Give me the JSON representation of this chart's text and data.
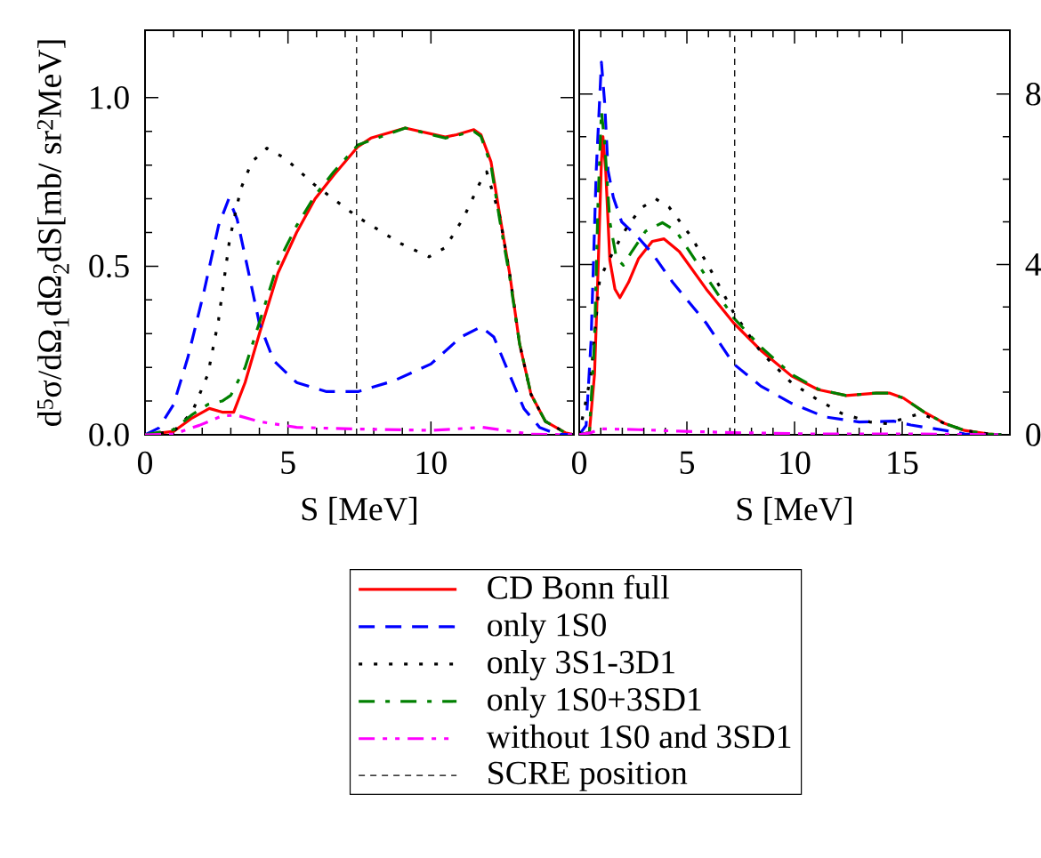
{
  "chart_data": [
    {
      "type": "line",
      "ylabel": "d$^{5}$σ/dΩ$_{1}$dΩ$_{2}$dS[mb/ sr$^{2}$MeV]",
      "xlabel": "S [MeV]",
      "xlim": [
        0,
        15
      ],
      "xticks": [
        0,
        5,
        10
      ],
      "ylim": [
        0,
        1.2
      ],
      "yticks": [
        {
          "value": 0,
          "label": "0.0"
        },
        {
          "value": 0.5,
          "label": "0.5"
        },
        {
          "value": 1.0,
          "label": "1.0"
        }
      ],
      "legend": "bottom",
      "series": [
        {
          "name": "CD Bonn full",
          "color": "#ff0000",
          "line_style": "solid",
          "x": [
            0,
            1.0,
            1.65,
            2.25,
            2.7,
            3.1,
            3.5,
            4.0,
            4.65,
            5.3,
            5.95,
            6.6,
            7.45,
            7.9,
            9.1,
            10.5,
            10.9,
            11.5,
            11.75,
            12.1,
            12.4,
            12.75,
            13.1,
            13.5,
            14.0,
            14.7,
            15.0
          ],
          "values": [
            0,
            0.01,
            0.05,
            0.078,
            0.067,
            0.067,
            0.155,
            0.3,
            0.48,
            0.6,
            0.7,
            0.77,
            0.855,
            0.88,
            0.91,
            0.883,
            0.89,
            0.905,
            0.89,
            0.81,
            0.655,
            0.48,
            0.27,
            0.12,
            0.04,
            0.006,
            0
          ]
        },
        {
          "name": "only 1S0",
          "color": "#0000ff",
          "line_style": "dashed",
          "x": [
            0,
            0.48,
            1.0,
            1.5,
            2.05,
            2.57,
            2.93,
            3.22,
            3.6,
            4.0,
            4.5,
            5.3,
            6.35,
            7.45,
            8.7,
            10.0,
            11.05,
            11.75,
            12.2,
            12.75,
            13.25,
            13.8,
            14.4,
            15.0
          ],
          "values": [
            0,
            0.02,
            0.09,
            0.23,
            0.42,
            0.62,
            0.7,
            0.64,
            0.49,
            0.33,
            0.22,
            0.155,
            0.128,
            0.128,
            0.16,
            0.21,
            0.29,
            0.32,
            0.29,
            0.178,
            0.078,
            0.022,
            0.002,
            0
          ]
        },
        {
          "name": "only 3S1-3D1",
          "color": "#000000",
          "line_style": "dotted",
          "x": [
            0,
            1.0,
            1.65,
            2.2,
            2.57,
            2.96,
            3.35,
            3.74,
            4.26,
            4.9,
            5.95,
            7.45,
            8.95,
            9.93,
            10.5,
            11.15,
            11.7,
            11.95,
            12.4,
            12.75,
            13.1,
            13.5,
            14.0,
            14.7,
            15.0
          ],
          "values": [
            0,
            0.01,
            0.067,
            0.18,
            0.34,
            0.58,
            0.73,
            0.81,
            0.85,
            0.82,
            0.74,
            0.645,
            0.567,
            0.528,
            0.555,
            0.645,
            0.745,
            0.78,
            0.65,
            0.48,
            0.27,
            0.12,
            0.04,
            0.006,
            0
          ]
        },
        {
          "name": "only 1S0+3SD1",
          "color": "#008000",
          "line_style": "dashdot",
          "x": [
            0,
            1.0,
            1.65,
            2.2,
            2.7,
            3.0,
            3.5,
            4.0,
            4.65,
            5.3,
            5.95,
            6.6,
            7.45,
            9.1,
            10.5,
            11.5,
            11.75,
            12.1,
            12.4,
            12.75,
            13.1,
            13.5,
            14.0,
            14.7,
            15.0
          ],
          "values": [
            0,
            0.015,
            0.06,
            0.09,
            0.1,
            0.117,
            0.2,
            0.333,
            0.51,
            0.62,
            0.71,
            0.78,
            0.86,
            0.91,
            0.88,
            0.9,
            0.885,
            0.8,
            0.64,
            0.47,
            0.27,
            0.12,
            0.04,
            0.006,
            0
          ]
        },
        {
          "name": "without 1S0 and 3SD1",
          "color": "#ff00ff",
          "line_style": "dashdotdot",
          "x": [
            0,
            1.0,
            1.9,
            2.7,
            3.2,
            4.0,
            5.3,
            7.45,
            10.0,
            11.8,
            12.9,
            13.5,
            15.0
          ],
          "values": [
            0,
            0.002,
            0.028,
            0.056,
            0.058,
            0.039,
            0.022,
            0.017,
            0.013,
            0.022,
            0.009,
            0.002,
            0
          ]
        }
      ],
      "ref_lines": [
        {
          "axis": "x",
          "value": 7.4,
          "label": "SCRE position",
          "color": "#000000",
          "line_style": "dashed"
        }
      ]
    },
    {
      "type": "line",
      "xlabel": "S [MeV]",
      "xlim": [
        0,
        20
      ],
      "xticks": [
        0,
        5,
        10,
        15
      ],
      "ylim": [
        0,
        9.5
      ],
      "yticks": [
        0,
        4,
        8
      ],
      "series": [
        {
          "color": "#ff0000",
          "line_style": "solid",
          "x": [
            0,
            0.47,
            0.71,
            0.87,
            1.03,
            1.1,
            1.23,
            1.42,
            1.66,
            1.89,
            2.29,
            2.76,
            3.39,
            3.94,
            4.65,
            5.9,
            7.18,
            8.44,
            9.86,
            11.1,
            12.4,
            13.8,
            14.4,
            15.06,
            16.0,
            17.0,
            17.9,
            19.0,
            19.6
          ],
          "values": [
            0,
            0.05,
            1.42,
            3.8,
            6.4,
            7.0,
            6.2,
            4.1,
            3.42,
            3.22,
            3.58,
            4.14,
            4.54,
            4.6,
            4.3,
            3.42,
            2.62,
            1.98,
            1.38,
            1.06,
            0.92,
            0.98,
            0.98,
            0.86,
            0.54,
            0.26,
            0.1,
            0.02,
            0
          ]
        },
        {
          "color": "#0000ff",
          "line_style": "dashed",
          "x": [
            0,
            0.32,
            0.55,
            0.79,
            1.03,
            1.18,
            1.34,
            1.58,
            1.97,
            2.76,
            3.39,
            4.34,
            5.9,
            7.18,
            8.44,
            9.86,
            11.4,
            13.0,
            14.6,
            15.4,
            17.0,
            17.9,
            19.6
          ],
          "values": [
            0,
            0.22,
            2.2,
            6.2,
            8.75,
            7.8,
            6.2,
            5.58,
            5.0,
            4.62,
            4.26,
            3.58,
            2.62,
            1.66,
            1.14,
            0.74,
            0.42,
            0.3,
            0.32,
            0.23,
            0.1,
            0.02,
            0
          ]
        },
        {
          "color": "#000000",
          "line_style": "dotted",
          "x": [
            0,
            0.55,
            0.95,
            1.18,
            1.66,
            2.29,
            2.92,
            3.55,
            4.18,
            5.13,
            5.9,
            7.18,
            8.44,
            9.86,
            10.96,
            12.2,
            13.5,
            14.3,
            15.06,
            15.85,
            17.0,
            17.9,
            19.0,
            19.6
          ],
          "values": [
            0,
            1.42,
            3.66,
            3.9,
            4.38,
            4.94,
            5.34,
            5.54,
            5.34,
            4.7,
            4.06,
            2.86,
            1.94,
            1.22,
            0.86,
            0.5,
            0.3,
            0.26,
            0.38,
            0.5,
            0.26,
            0.1,
            0.02,
            0
          ]
        },
        {
          "color": "#008000",
          "line_style": "dashdot",
          "x": [
            0,
            0.47,
            0.71,
            0.87,
            1.03,
            1.18,
            1.42,
            1.73,
            2.05,
            2.44,
            3.08,
            3.86,
            4.5,
            5.44,
            7.18,
            8.44,
            9.86,
            11.1,
            12.4,
            13.8,
            14.4,
            15.06,
            16.0,
            17.0,
            17.9,
            19.0,
            19.6
          ],
          "values": [
            0,
            0.05,
            2.2,
            5.4,
            7.6,
            6.87,
            5.0,
            4.14,
            3.98,
            4.3,
            4.78,
            4.98,
            4.78,
            4.06,
            2.74,
            2.06,
            1.42,
            1.07,
            0.92,
            0.98,
            0.98,
            0.86,
            0.54,
            0.26,
            0.1,
            0.02,
            0
          ]
        },
        {
          "color": "#ff00ff",
          "line_style": "dashdotdot",
          "x": [
            0,
            0.55,
            1.03,
            2.76,
            4.34,
            7.18,
            10.6,
            15.4,
            19.6
          ],
          "values": [
            0,
            0.05,
            0.14,
            0.12,
            0.09,
            0.05,
            0.02,
            0.02,
            0
          ]
        }
      ],
      "ref_lines": [
        {
          "axis": "x",
          "value": 7.22,
          "color": "#000000",
          "line_style": "dashed"
        }
      ]
    }
  ]
}
